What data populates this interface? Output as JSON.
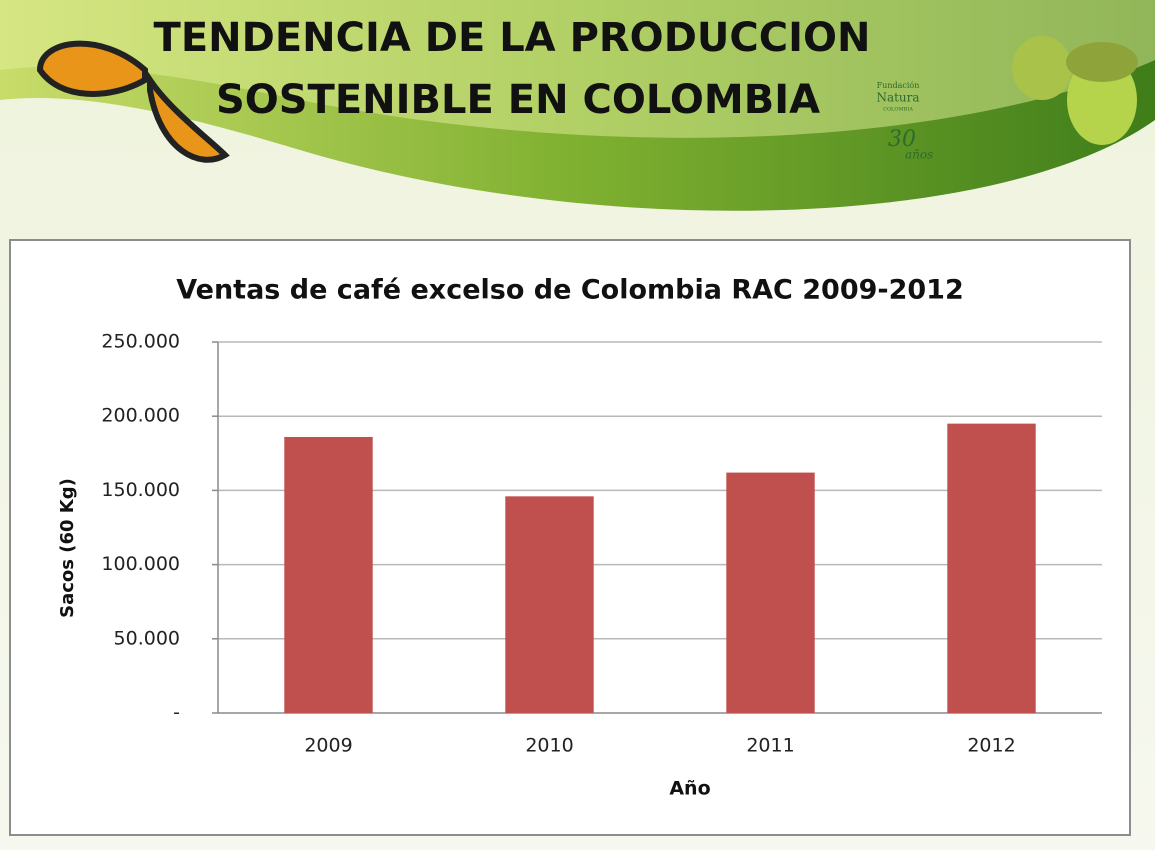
{
  "header": {
    "title_lines": [
      "TENDENCIA DE LA PRODUCCION",
      "SOSTENIBLE EN COLOMBIA"
    ],
    "logo": {
      "name_lines": [
        "Fundación",
        "Natura",
        "COLOMBIA"
      ],
      "anniversary_number": "30",
      "anniversary_word": "años"
    }
  },
  "chart_data": {
    "type": "bar",
    "title": "Ventas  de café excelso de Colombia RAC  2009-2012",
    "x_label": "Año",
    "y_label": "Sacos  (60 Kg)",
    "categories": [
      "2009",
      "2010",
      "2011",
      "2012"
    ],
    "values": [
      186000,
      146000,
      162000,
      195000
    ],
    "color": "#c0504d",
    "ylim": [
      0,
      250000
    ],
    "yticks": [
      {
        "value": 0,
        "label": "-"
      },
      {
        "value": 50000,
        "label": "50.000"
      },
      {
        "value": 100000,
        "label": "100.000"
      },
      {
        "value": 150000,
        "label": "150.000"
      },
      {
        "value": 200000,
        "label": "200.000"
      },
      {
        "value": 250000,
        "label": "250.000"
      }
    ],
    "grid": true
  }
}
